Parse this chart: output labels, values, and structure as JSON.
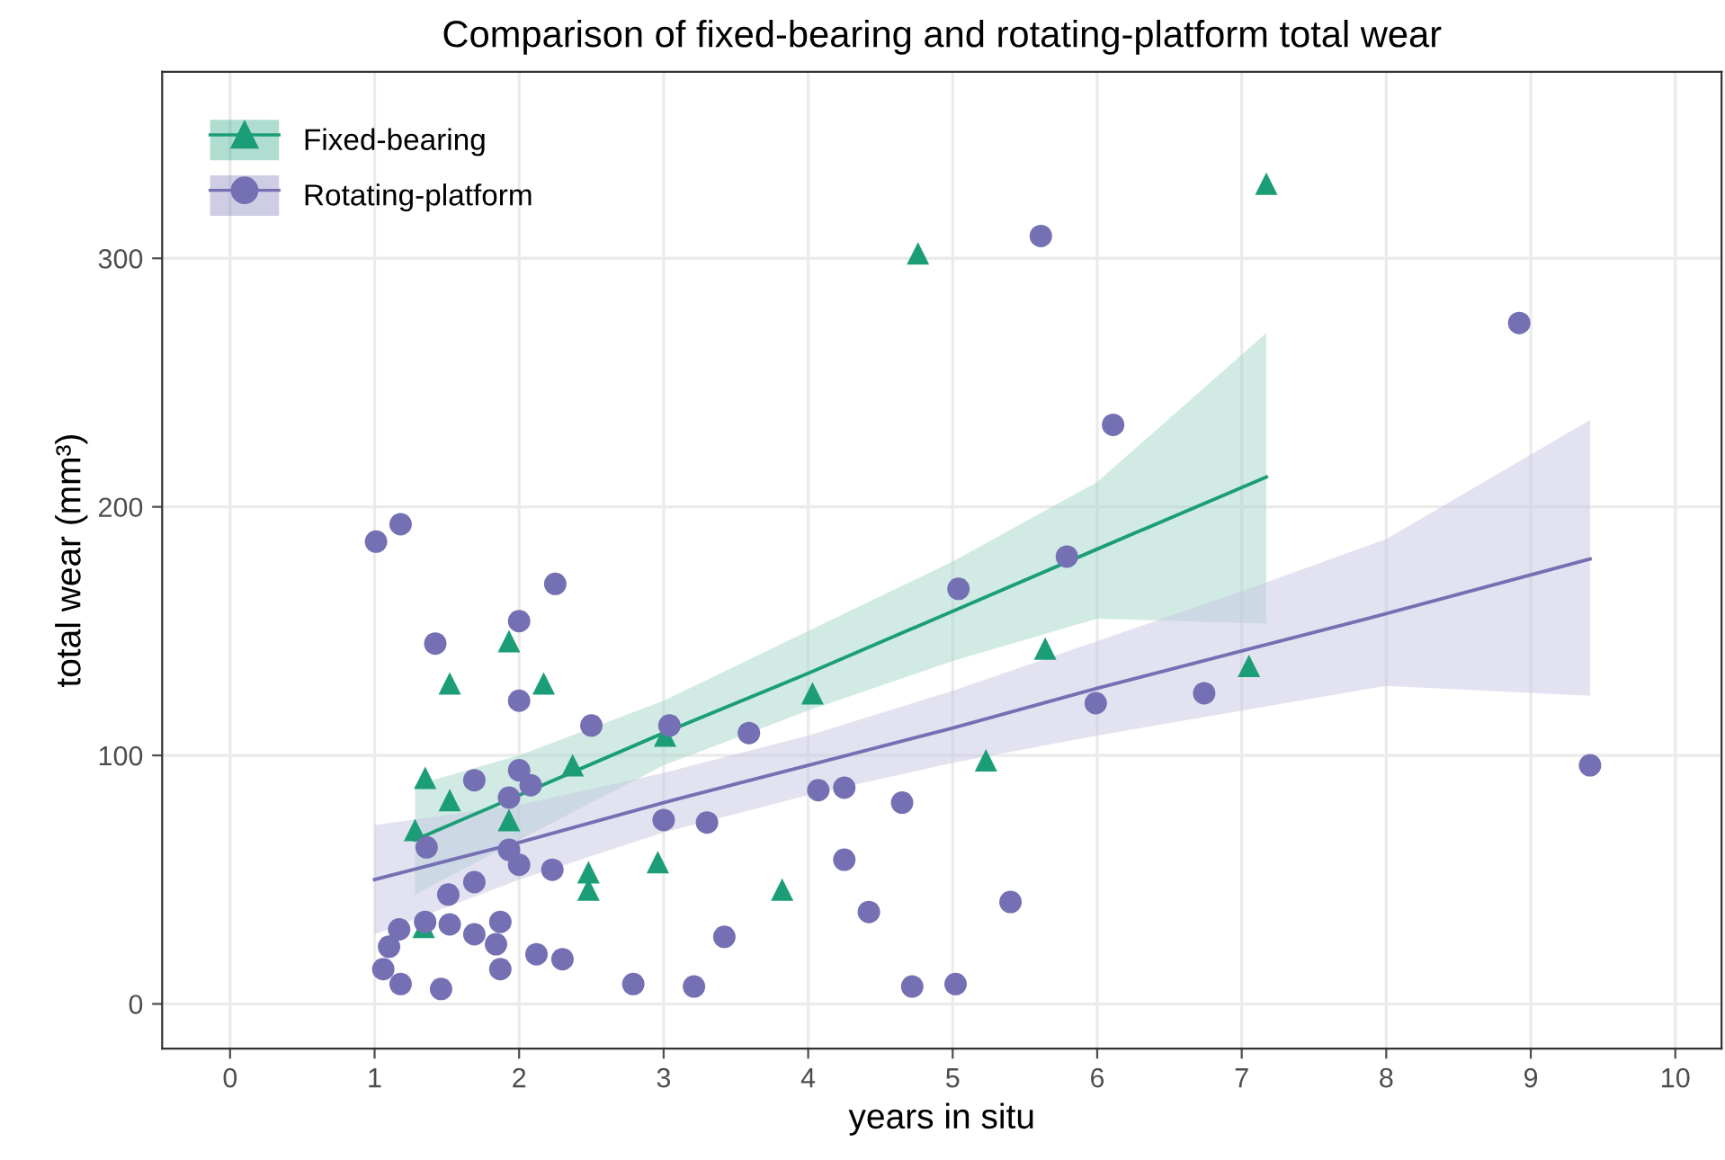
{
  "chart_data": {
    "type": "scatter",
    "title": "Comparison of fixed-bearing and rotating-platform total wear",
    "xlabel": "years in situ",
    "ylabel": "total wear (mm³)",
    "xlim": [
      -0.47,
      10.32
    ],
    "ylim": [
      -18,
      375
    ],
    "xticks": [
      0,
      1,
      2,
      3,
      4,
      5,
      6,
      7,
      8,
      9,
      10
    ],
    "yticks": [
      0,
      100,
      200,
      300
    ],
    "grid": true,
    "legend": "top left",
    "series": [
      {
        "name": "Fixed-bearing",
        "marker": "triangle",
        "color": "#1b9e77",
        "x": [
          1.28,
          1.35,
          1.34,
          1.52,
          1.52,
          1.93,
          1.93,
          2.17,
          2.37,
          2.48,
          2.48,
          2.96,
          3.01,
          3.82,
          4.03,
          4.76,
          5.23,
          5.64,
          7.05,
          7.17
        ],
        "values": [
          70,
          91,
          31,
          129,
          82,
          146,
          74,
          129,
          96,
          53,
          46,
          57,
          108,
          46,
          125,
          302,
          98,
          143,
          136,
          330
        ]
      },
      {
        "type": "line",
        "color": "#1b9e77",
        "x": [
          1.28,
          2,
          3,
          4,
          5,
          6,
          7.17
        ],
        "values": [
          66,
          84,
          109,
          133,
          158,
          183,
          212
        ],
        "lower": [
          44,
          66,
          96,
          118,
          138,
          155,
          153
        ],
        "upper": [
          88,
          100,
          122,
          150,
          178,
          210,
          270
        ]
      },
      {
        "name": "Rotating-platform",
        "marker": "circle",
        "color": "#7570b3",
        "x": [
          1.01,
          1.18,
          1.42,
          1.69,
          1.36,
          2.0,
          2.25,
          2.0,
          2.5,
          3.04,
          3.59,
          2.0,
          1.93,
          2.08,
          1.93,
          2.0,
          2.23,
          1.69,
          1.51,
          1.17,
          1.35,
          1.52,
          1.87,
          1.69,
          1.84,
          1.1,
          1.06,
          1.87,
          2.12,
          2.3,
          1.18,
          1.46,
          2.79,
          3.21,
          5.04,
          5.79,
          5.99,
          4.07,
          4.25,
          4.65,
          3.0,
          3.3,
          4.25,
          3.42,
          4.42,
          5.4,
          4.72,
          5.02,
          5.61,
          6.11,
          8.92,
          9.41,
          6.74
        ],
        "values": [
          186,
          193,
          145,
          90,
          63,
          154,
          169,
          122,
          112,
          112,
          109,
          94,
          83,
          88,
          62,
          56,
          54,
          49,
          44,
          30,
          33,
          32,
          33,
          28,
          24,
          23,
          14,
          14,
          20,
          18,
          8,
          6,
          8,
          7,
          167,
          180,
          121,
          86,
          87,
          81,
          74,
          73,
          58,
          27,
          37,
          41,
          7,
          8,
          309,
          233,
          274,
          96,
          125
        ]
      },
      {
        "type": "line",
        "color": "#7570b3",
        "x": [
          1.0,
          2,
          3,
          4,
          5,
          6,
          7,
          8,
          9.41
        ],
        "values": [
          50,
          65,
          81,
          96,
          111,
          127,
          142,
          157,
          179
        ],
        "lower": [
          28,
          50,
          69,
          84,
          97,
          108,
          118,
          128,
          124
        ],
        "upper": [
          72,
          80,
          93,
          108,
          126,
          146,
          166,
          187,
          235
        ]
      }
    ]
  }
}
